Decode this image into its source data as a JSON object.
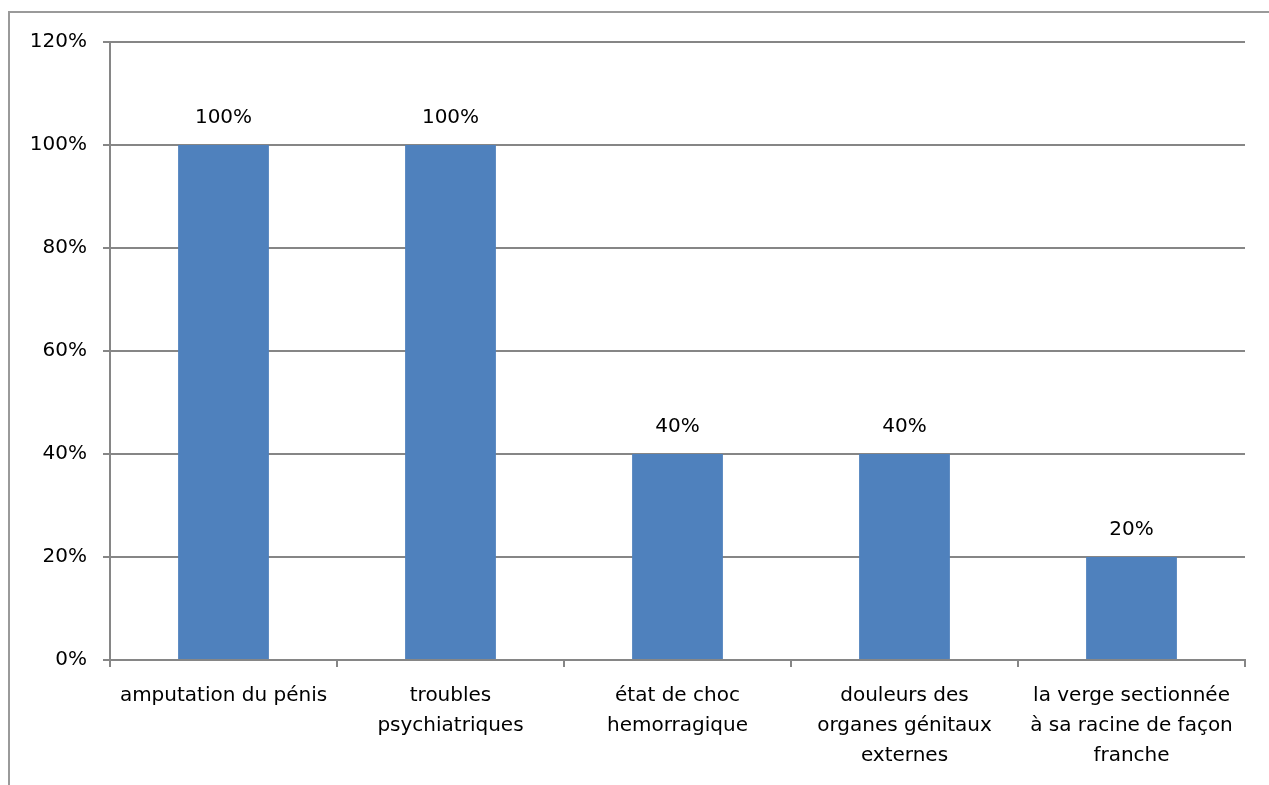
{
  "chart_data": {
    "type": "bar",
    "categories": [
      "amputation du pénis",
      "troubles psychiatriques",
      "état de choc hemorragique",
      "douleurs des organes génitaux externes",
      "la verge sectionnée à sa racine de façon franche"
    ],
    "values": [
      100,
      100,
      40,
      40,
      20
    ],
    "color": "#4f81bd",
    "value_labels": [
      "100%",
      "100%",
      "40%",
      "40%",
      "20%"
    ],
    "ylim": [
      0,
      120
    ],
    "yticks": [
      {
        "value": 0,
        "label": "0%"
      },
      {
        "value": 20,
        "label": "20%"
      },
      {
        "value": 40,
        "label": "40%"
      },
      {
        "value": 60,
        "label": "60%"
      },
      {
        "value": 80,
        "label": "80%"
      },
      {
        "value": 100,
        "label": "100%"
      },
      {
        "value": 120,
        "label": "120%"
      }
    ],
    "grid": "y"
  }
}
